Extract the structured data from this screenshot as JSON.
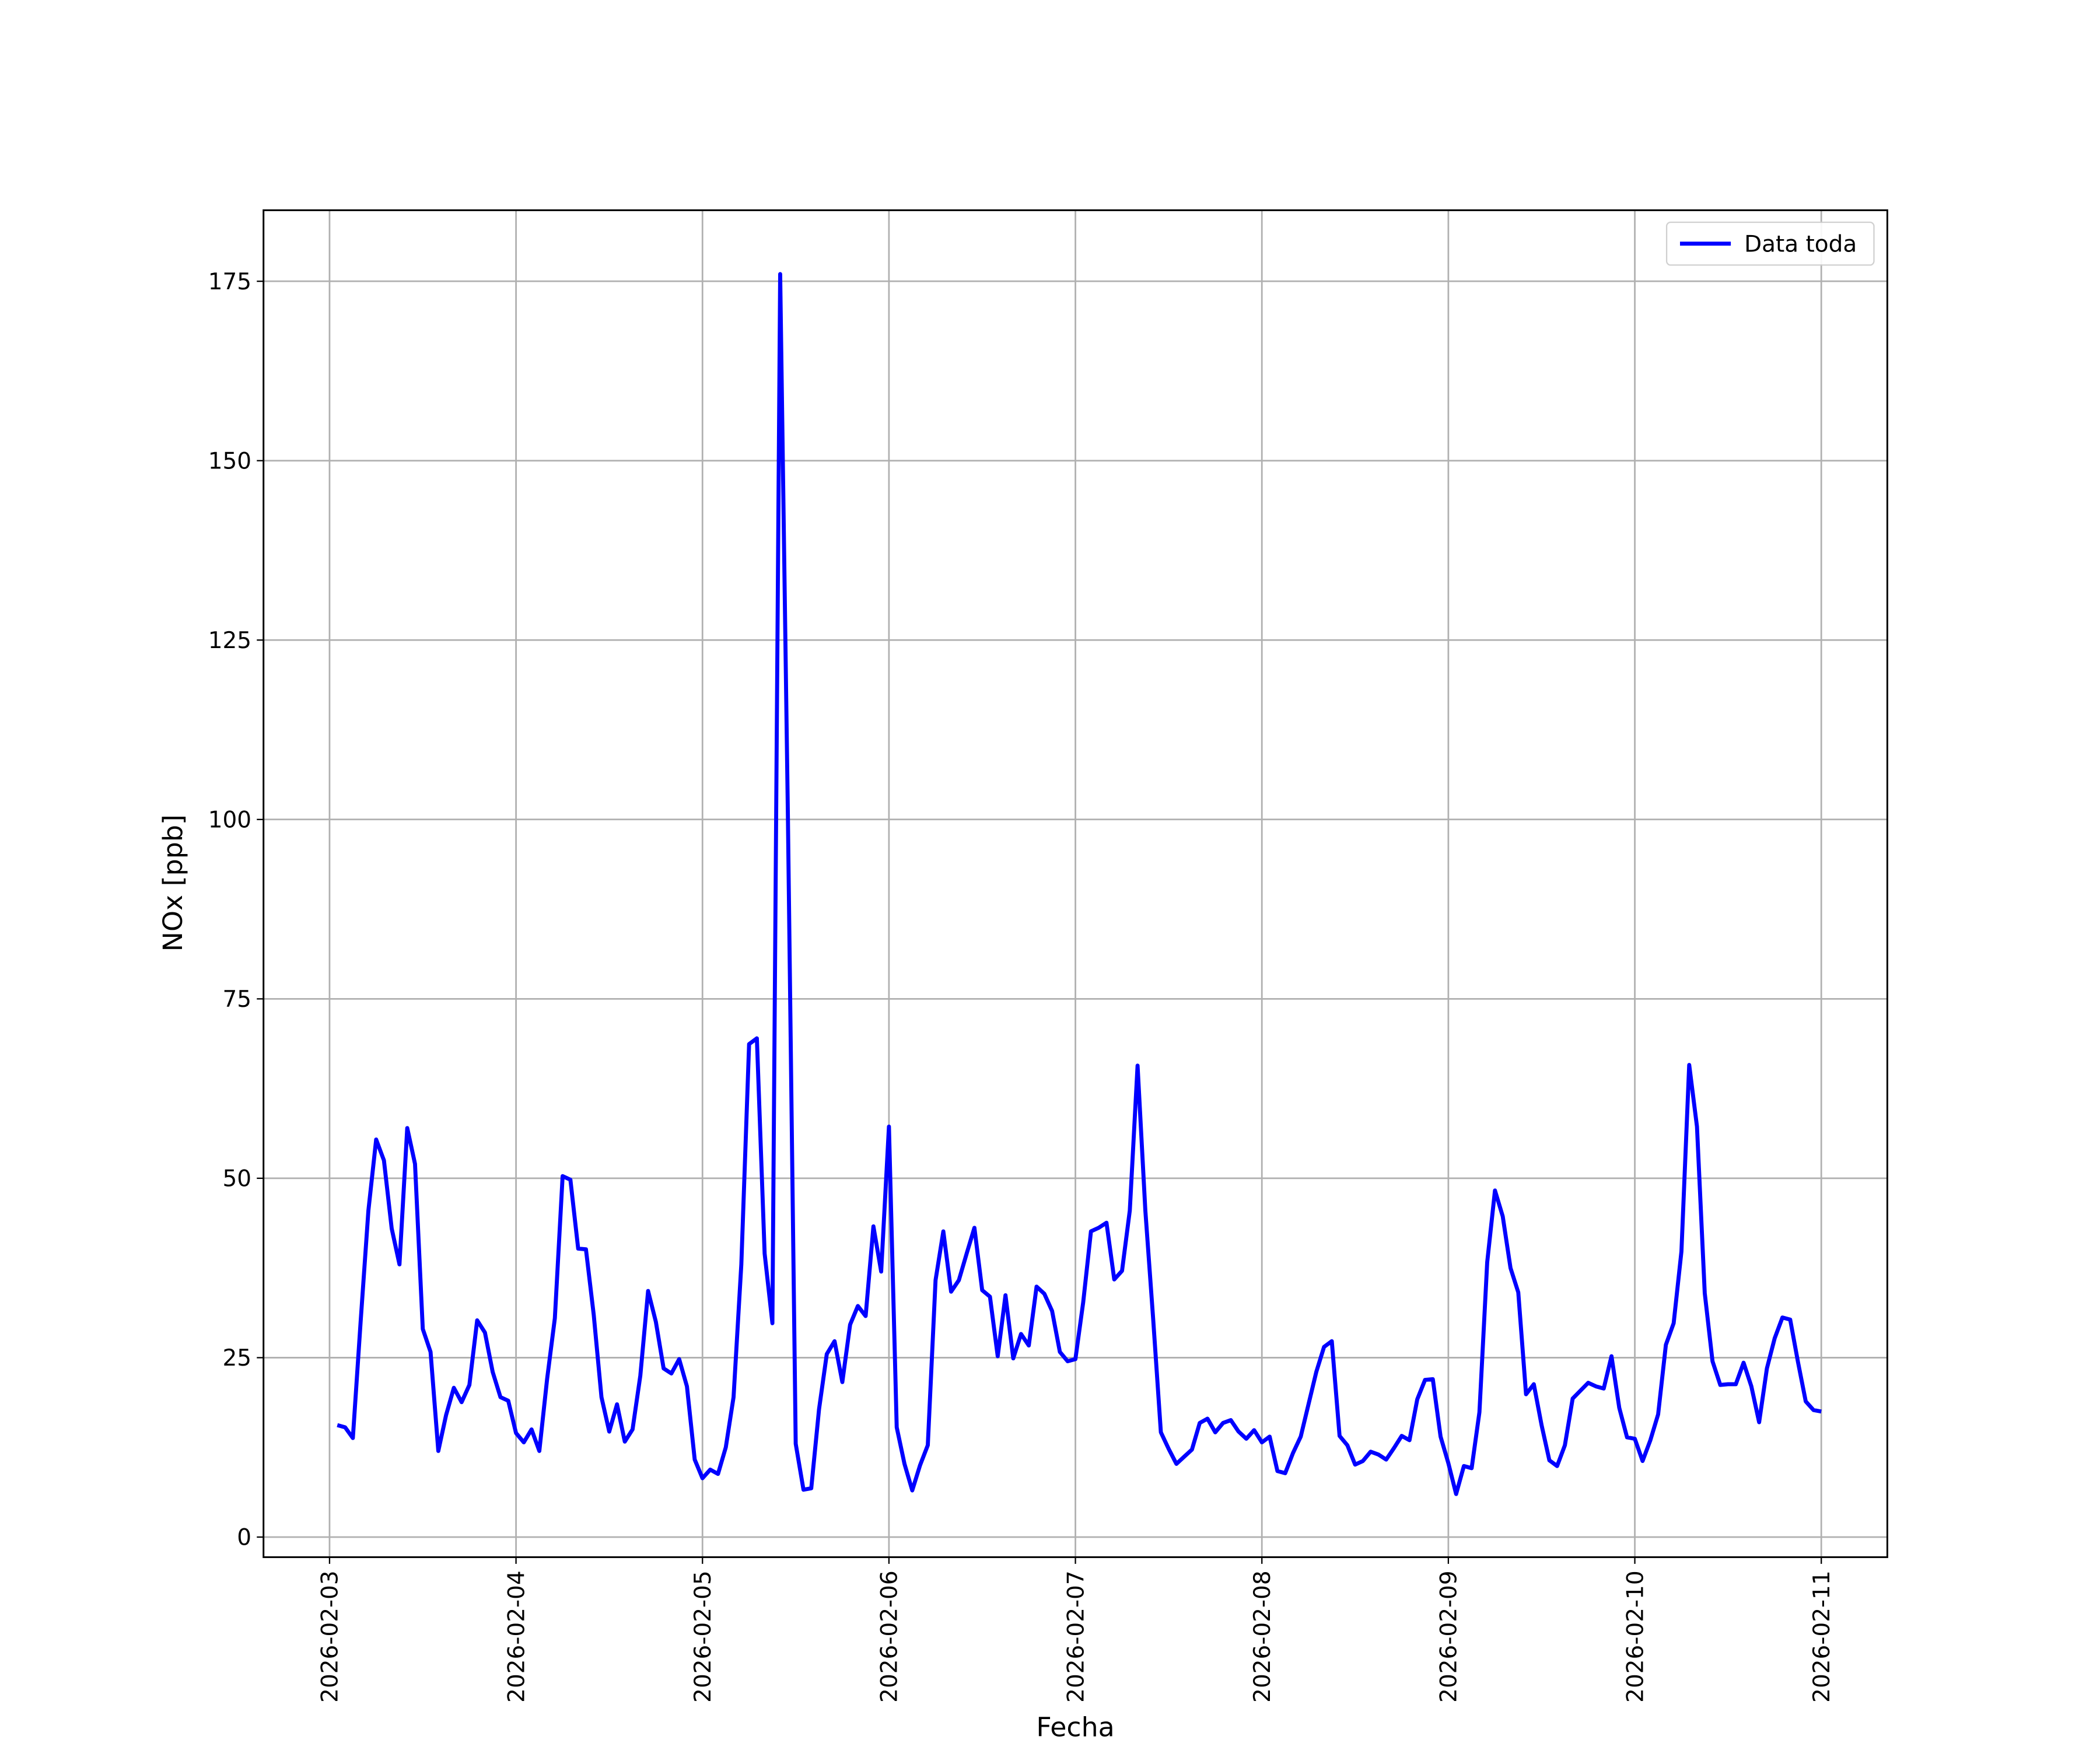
{
  "chart_data": {
    "type": "line",
    "x_label": "Fecha",
    "y_label": "NOx [ppb]",
    "categories": [
      "2026-02-03",
      null,
      null,
      null,
      null,
      null,
      null,
      null,
      null,
      null,
      null,
      null,
      null,
      null,
      null,
      null,
      null,
      null,
      null,
      null,
      null,
      null,
      null,
      null,
      "2026-02-04",
      null,
      null,
      null,
      null,
      null,
      null,
      null,
      null,
      null,
      null,
      null,
      null,
      null,
      null,
      null,
      null,
      null,
      null,
      null,
      null,
      null,
      null,
      null,
      "2026-02-05",
      null,
      null,
      null,
      null,
      null,
      null,
      null,
      null,
      null,
      null,
      null,
      null,
      null,
      null,
      null,
      null,
      null,
      null,
      null,
      null,
      null,
      null,
      null,
      "2026-02-06",
      null,
      null,
      null,
      null,
      null,
      null,
      null,
      null,
      null,
      null,
      null,
      null,
      null,
      null,
      null,
      null,
      null,
      null,
      null,
      null,
      null,
      null,
      null,
      "2026-02-07",
      null,
      null,
      null,
      null,
      null,
      null,
      null,
      null,
      null,
      null,
      null,
      null,
      null,
      null,
      null,
      null,
      null,
      null,
      null,
      null,
      null,
      null,
      null,
      "2026-02-08",
      null,
      null,
      null,
      null,
      null,
      null,
      null,
      null,
      null,
      null,
      null,
      null,
      null,
      null,
      null,
      null,
      null,
      null,
      null,
      null,
      null,
      null,
      null,
      "2026-02-09",
      null,
      null,
      null,
      null,
      null,
      null,
      null,
      null,
      null,
      null,
      null,
      null,
      null,
      null,
      null,
      null,
      null,
      null,
      null,
      null,
      null,
      null,
      null,
      "2026-02-10",
      null,
      null,
      null,
      null,
      null,
      null,
      null,
      null,
      null,
      null,
      null,
      null,
      null,
      null,
      null,
      null,
      null,
      null,
      null,
      null,
      null,
      null,
      null,
      "2026-02-11"
    ],
    "series": [
      {
        "name": "Data toda",
        "color": "#0000ff",
        "values": [
          null,
          15.6,
          15.3,
          13.8,
          30,
          45.5,
          55.4,
          52.5,
          43,
          38,
          57,
          52,
          29,
          25.8,
          12,
          17,
          20.8,
          18.8,
          21.2,
          30.2,
          28.5,
          23,
          19.5,
          19,
          14.5,
          13.2,
          15,
          12,
          22,
          30.5,
          50.3,
          49.8,
          40.2,
          40.1,
          31,
          19.5,
          14.7,
          18.5,
          13.3,
          15,
          22.5,
          34.3,
          30,
          23.5,
          22.8,
          24.8,
          21,
          10.8,
          8.2,
          9.4,
          8.8,
          12.5,
          19.5,
          38,
          68.7,
          69.5,
          39.5,
          29.8,
          176,
          100,
          13,
          6.6,
          6.8,
          17.8,
          25.5,
          27.3,
          21.6,
          29.6,
          32.2,
          30.8,
          43.3,
          37,
          57.2,
          15.3,
          10.2,
          6.5,
          10,
          12.8,
          35.8,
          42.6,
          34.2,
          35.8,
          39.5,
          43.1,
          34.4,
          33.5,
          25.2,
          33.7,
          24.9,
          28.3,
          26.7,
          34.9,
          33.9,
          31.5,
          25.8,
          24.5,
          24.8,
          32.7,
          42.6,
          43.1,
          43.8,
          35.9,
          37.1,
          45.5,
          65.7,
          45.5,
          30.5,
          14.6,
          12.3,
          10.2,
          11.2,
          12.2,
          15.9,
          16.5,
          14.6,
          15.9,
          16.3,
          14.7,
          13.7,
          14.9,
          13.2,
          14,
          9.2,
          8.9,
          11.7,
          14,
          18.5,
          23,
          26.5,
          27.3,
          14.1,
          12.8,
          10.1,
          10.6,
          11.9,
          11.5,
          10.8,
          12.4,
          14.1,
          13.5,
          19.2,
          21.9,
          22,
          14,
          10.3,
          6,
          9.9,
          9.6,
          17.4,
          38.3,
          48.3,
          44.7,
          37.5,
          34.1,
          19.9,
          21.3,
          15.6,
          10.7,
          9.9,
          12.8,
          19.3,
          20.4,
          21.5,
          21,
          20.7,
          25.2,
          18,
          13.9,
          13.7,
          10.6,
          13.5,
          17.1,
          26.8,
          29.8,
          39.8,
          65.8,
          57.2,
          34,
          24.5,
          21.2,
          21.3,
          21.3,
          24.3,
          21,
          16,
          23.5,
          27.7,
          30.6,
          30.3,
          24.4,
          18.9,
          17.7,
          17.5
        ]
      }
    ],
    "ylim": [
      -2.8,
      184.9
    ],
    "yticks": [
      0,
      25,
      50,
      75,
      100,
      125,
      150,
      175
    ],
    "grid": true,
    "legend": "upper right"
  }
}
